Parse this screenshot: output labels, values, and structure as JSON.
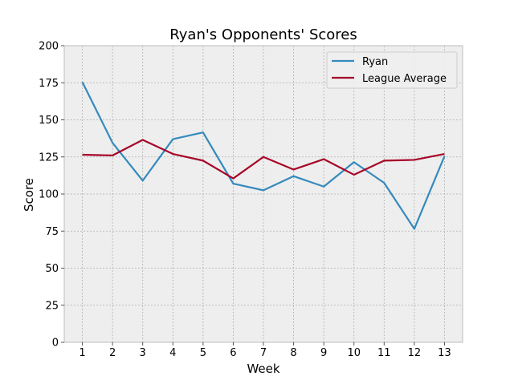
{
  "chart_data": {
    "type": "line",
    "title": "Ryan's Opponents' Scores",
    "xlabel": "Week",
    "ylabel": "Score",
    "x": [
      1,
      2,
      3,
      4,
      5,
      6,
      7,
      8,
      9,
      10,
      11,
      12,
      13
    ],
    "xlim": [
      0.4,
      13.6
    ],
    "ylim": [
      0,
      200
    ],
    "yticks": [
      0,
      25,
      50,
      75,
      100,
      125,
      150,
      175,
      200
    ],
    "grid": true,
    "legend_position": "upper right",
    "background_color": "#eeeeee",
    "series": [
      {
        "name": "Ryan",
        "color": "#348abd",
        "values": [
          175.5,
          134.5,
          109.0,
          137.0,
          141.5,
          107.0,
          102.5,
          112.0,
          105.0,
          121.5,
          107.5,
          76.5,
          125.5
        ]
      },
      {
        "name": "League Average",
        "color": "#a60628",
        "values": [
          126.5,
          126.0,
          136.5,
          127.0,
          122.5,
          110.5,
          125.0,
          116.5,
          123.5,
          113.0,
          122.5,
          123.0,
          127.0
        ]
      }
    ]
  }
}
